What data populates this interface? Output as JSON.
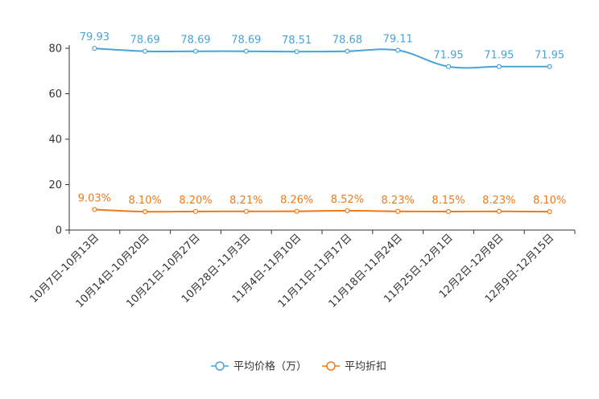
{
  "chart_data": {
    "type": "line",
    "categories": [
      "10月7日-10月13日",
      "10月14日-10月20日",
      "10月21日-10月27日",
      "10月28日-11月3日",
      "11月4日-11月10日",
      "11月11日-11月17日",
      "11月18日-11月24日",
      "11月25日-12月1日",
      "12月2日-12月8日",
      "12月9日-12月15日"
    ],
    "series": [
      {
        "name": "平均价格（万）",
        "color": "#4aa3d8",
        "values": [
          79.93,
          78.69,
          78.69,
          78.69,
          78.51,
          78.68,
          79.11,
          71.95,
          71.95,
          71.95
        ],
        "labels": [
          "79.93",
          "78.69",
          "78.69",
          "78.69",
          "78.51",
          "78.68",
          "79.11",
          "71.95",
          "71.95",
          "71.95"
        ]
      },
      {
        "name": "平均折扣",
        "color": "#f07a1a",
        "values": [
          9.03,
          8.1,
          8.2,
          8.21,
          8.26,
          8.52,
          8.23,
          8.15,
          8.23,
          8.1
        ],
        "labels": [
          "9.03%",
          "8.10%",
          "8.20%",
          "8.21%",
          "8.26%",
          "8.52%",
          "8.23%",
          "8.15%",
          "8.23%",
          "8.10%"
        ]
      }
    ],
    "yticks": [
      "0",
      "20",
      "40",
      "60",
      "80"
    ],
    "ylim": [
      0,
      80
    ],
    "legend_position": "bottom-center"
  }
}
